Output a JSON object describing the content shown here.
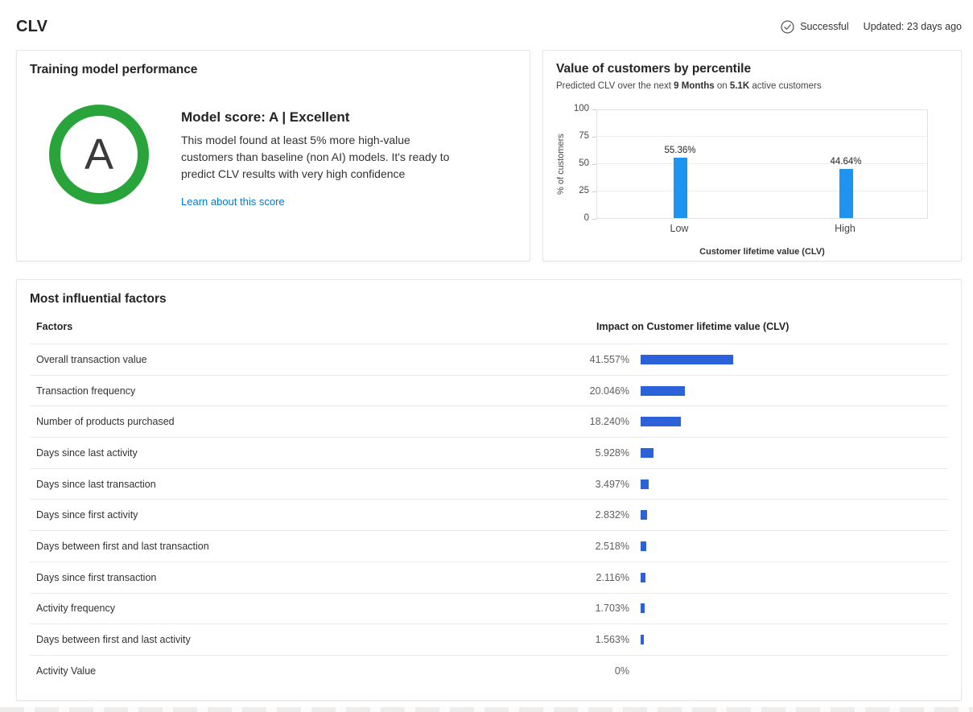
{
  "page": {
    "title": "CLV",
    "status_label": "Successful",
    "updated": "Updated: 23 days ago"
  },
  "colors": {
    "grade_ring": "#28a43a",
    "chart_bar": "#1e94f0",
    "factor_bar": "#2b62d9",
    "link": "#0078d4"
  },
  "training_card": {
    "title": "Training model performance",
    "grade": "A",
    "heading": "Model score: A | Excellent",
    "description": "This model found at least 5% more high-value customers than baseline (non AI) models. It's ready to predict CLV results with very high confidence",
    "link_label": "Learn about this score"
  },
  "percentile_card": {
    "title": "Value of customers by percentile",
    "subtitle_parts": [
      {
        "text": "Predicted CLV over the next ",
        "bold": false
      },
      {
        "text": "9 Months",
        "bold": true
      },
      {
        "text": " on ",
        "bold": false
      },
      {
        "text": "5.1K",
        "bold": true
      },
      {
        "text": " active customers",
        "bold": false
      }
    ],
    "chart_data": {
      "type": "bar",
      "categories": [
        "Low",
        "High"
      ],
      "values": [
        55.36,
        44.64
      ],
      "value_labels": [
        "55.36%",
        "44.64%"
      ],
      "title": "Value of customers by percentile",
      "xlabel": "Customer lifetime value (CLV)",
      "ylabel": "% of customers",
      "ylim": [
        0,
        100
      ],
      "yticks": [
        0,
        25,
        50,
        75,
        100
      ],
      "grid": true,
      "legend": false
    }
  },
  "factors_card": {
    "title": "Most influential factors",
    "columns": [
      "Factors",
      "Impact on Customer lifetime value (CLV)"
    ],
    "rows": [
      {
        "label": "Overall transaction value",
        "value": "41.557%",
        "impact": 41.557
      },
      {
        "label": "Transaction frequency",
        "value": "20.046%",
        "impact": 20.046
      },
      {
        "label": "Number of products purchased",
        "value": "18.240%",
        "impact": 18.24
      },
      {
        "label": "Days since last activity",
        "value": "5.928%",
        "impact": 5.928
      },
      {
        "label": "Days since last transaction",
        "value": "3.497%",
        "impact": 3.497
      },
      {
        "label": "Days since first activity",
        "value": "2.832%",
        "impact": 2.832
      },
      {
        "label": "Days between first and last transaction",
        "value": "2.518%",
        "impact": 2.518
      },
      {
        "label": "Days since first transaction",
        "value": "2.116%",
        "impact": 2.116
      },
      {
        "label": "Activity frequency",
        "value": "1.703%",
        "impact": 1.703
      },
      {
        "label": "Days between first and last activity",
        "value": "1.563%",
        "impact": 1.563
      },
      {
        "label": "Activity Value",
        "value": "0%",
        "impact": 0
      }
    ]
  }
}
